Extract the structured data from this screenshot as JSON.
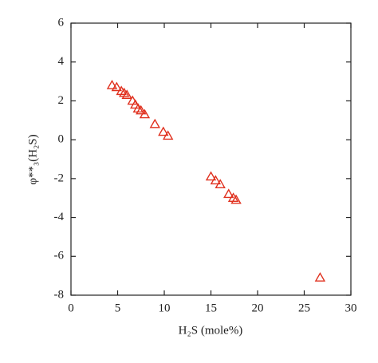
{
  "chart_data": {
    "type": "scatter",
    "x_label": "H₂S (mole%)",
    "y_label": "φ**₃(H₂S)",
    "series": [
      {
        "color": "#e0301e",
        "x": [
          4.4,
          4.9,
          5.4,
          5.7,
          6.0,
          6.6,
          6.9,
          7.2,
          7.5,
          7.9,
          9.0,
          9.9,
          10.4,
          15.0,
          15.5,
          16.0,
          16.9,
          17.4,
          17.7,
          26.7
        ],
        "values": [
          2.8,
          2.7,
          2.5,
          2.4,
          2.3,
          2.0,
          1.8,
          1.6,
          1.5,
          1.3,
          0.8,
          0.4,
          0.2,
          -1.9,
          -2.1,
          -2.3,
          -2.8,
          -3.0,
          -3.1,
          -7.1
        ]
      }
    ],
    "xlim": [
      0,
      30
    ],
    "xticks": [
      0,
      5,
      10,
      15,
      20,
      25,
      30
    ],
    "ylim": [
      -8,
      6
    ],
    "yticks": [
      -8,
      -6,
      -4,
      -2,
      0,
      2,
      4,
      6
    ]
  }
}
